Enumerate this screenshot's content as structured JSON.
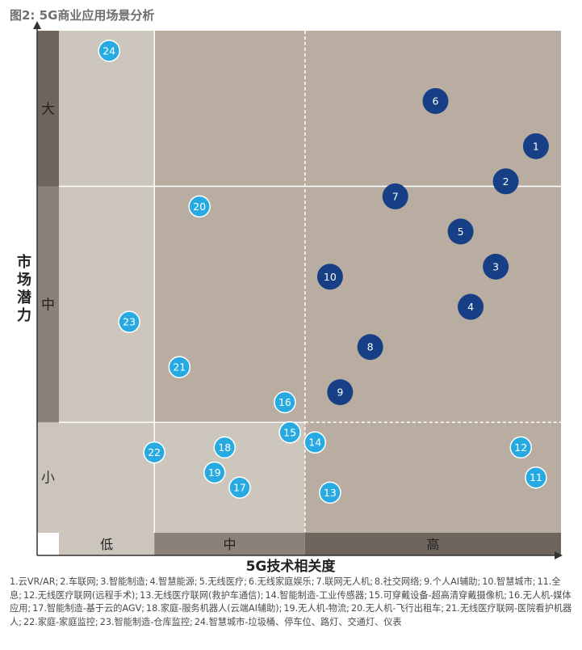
{
  "title": "图2: 5G商业应用场景分析",
  "colors": {
    "plot_bg": "#b8ada0",
    "low_zone": "#cdc6bc",
    "band_dark": "#6e655d",
    "band_mid": "#8a8178",
    "band_light": "#cbc5bd",
    "bubble_light": "#27aae1",
    "bubble_dark": "#173f86"
  },
  "chart_data": {
    "type": "scatter",
    "xlabel": "5G技术相关度",
    "ylabel": "市场潜力",
    "xlim": [
      0,
      100
    ],
    "ylim": [
      0,
      100
    ],
    "x_bands": [
      {
        "label": "低",
        "from": 0,
        "to": 19
      },
      {
        "label": "中",
        "from": 19,
        "to": 49
      },
      {
        "label": "高",
        "from": 49,
        "to": 100
      }
    ],
    "y_bands": [
      {
        "label": "小",
        "from": 0,
        "to": 22
      },
      {
        "label": "中",
        "from": 22,
        "to": 69
      },
      {
        "label": "大",
        "from": 69,
        "to": 100
      }
    ],
    "quadrant_divider": {
      "x": 49,
      "y": 22
    },
    "points": [
      {
        "id": "1",
        "x": 95,
        "y": 77,
        "group": "dark"
      },
      {
        "id": "2",
        "x": 89,
        "y": 70,
        "group": "dark"
      },
      {
        "id": "3",
        "x": 87,
        "y": 53,
        "group": "dark"
      },
      {
        "id": "4",
        "x": 82,
        "y": 45,
        "group": "dark"
      },
      {
        "id": "5",
        "x": 80,
        "y": 60,
        "group": "dark"
      },
      {
        "id": "6",
        "x": 75,
        "y": 86,
        "group": "dark"
      },
      {
        "id": "7",
        "x": 67,
        "y": 67,
        "group": "dark"
      },
      {
        "id": "8",
        "x": 62,
        "y": 37,
        "group": "dark"
      },
      {
        "id": "9",
        "x": 56,
        "y": 28,
        "group": "dark"
      },
      {
        "id": "10",
        "x": 54,
        "y": 51,
        "group": "dark"
      },
      {
        "id": "11",
        "x": 95,
        "y": 11,
        "group": "light"
      },
      {
        "id": "12",
        "x": 92,
        "y": 17,
        "group": "light"
      },
      {
        "id": "13",
        "x": 54,
        "y": 8,
        "group": "light"
      },
      {
        "id": "14",
        "x": 51,
        "y": 18,
        "group": "light"
      },
      {
        "id": "15",
        "x": 46,
        "y": 20,
        "group": "light"
      },
      {
        "id": "16",
        "x": 45,
        "y": 26,
        "group": "light"
      },
      {
        "id": "17",
        "x": 36,
        "y": 9,
        "group": "light"
      },
      {
        "id": "18",
        "x": 33,
        "y": 17,
        "group": "light"
      },
      {
        "id": "19",
        "x": 31,
        "y": 12,
        "group": "light"
      },
      {
        "id": "20",
        "x": 28,
        "y": 65,
        "group": "light"
      },
      {
        "id": "21",
        "x": 24,
        "y": 33,
        "group": "light"
      },
      {
        "id": "22",
        "x": 19,
        "y": 16,
        "group": "light"
      },
      {
        "id": "23",
        "x": 14,
        "y": 42,
        "group": "light"
      },
      {
        "id": "24",
        "x": 10,
        "y": 96,
        "group": "light"
      }
    ]
  },
  "legend_items": [
    "1.云VR/AR;",
    "2.车联网;",
    "3.智能制造;",
    "4.智慧能源;",
    "5.无线医疗;",
    "6.无线家庭娱乐;",
    "7.联网无人机;",
    "8.社交网络;",
    "9.个人AI辅助;",
    "10.智慧城市;",
    "11.全息;",
    "12.无线医疗联网(远程手术);",
    "13.无线医疗联网(救护车通信);",
    "14.智能制造-工业传感器;",
    "15.可穿戴设备-超高清穿戴摄像机;",
    "16.无人机-媒体应用;",
    "17.智能制造-基于云的AGV;",
    "18.家庭-服务机器人(云端AI辅助);",
    "19.无人机-物流;",
    "20.无人机-飞行出租车;",
    "21.无线医疗联网-医院看护机器人;",
    "22.家庭-家庭监控;",
    "23.智能制造-仓库监控;",
    "24.智慧城市-垃圾桶、停车位、路灯、交通灯、仪表"
  ]
}
